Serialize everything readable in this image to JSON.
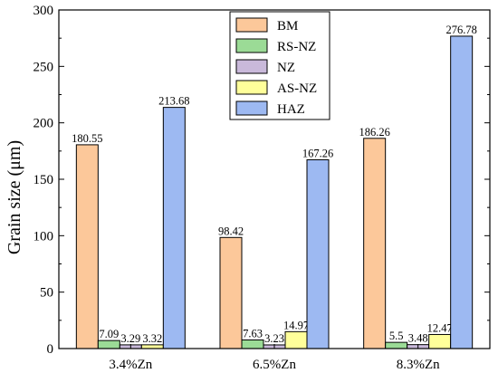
{
  "chart_data": {
    "type": "bar",
    "ylabel": "Grain size (μm)",
    "xlabel": "",
    "ylim": [
      0,
      300
    ],
    "yticks": [
      0,
      50,
      100,
      150,
      200,
      250,
      300
    ],
    "grid": false,
    "legend_position": "top-center",
    "categories": [
      "3.4%Zn",
      "6.5%Zn",
      "8.3%Zn"
    ],
    "series": [
      {
        "name": "BM",
        "color": "#FCC89A",
        "values": [
          180.55,
          98.42,
          186.26
        ],
        "labels": [
          "180.55",
          "98.42",
          "186.26"
        ]
      },
      {
        "name": "RS-NZ",
        "color": "#9BDB96",
        "values": [
          7.09,
          7.63,
          5.5
        ],
        "labels": [
          "7.09",
          "7.63",
          "5.5"
        ]
      },
      {
        "name": "NZ",
        "color": "#C9B9DA",
        "values": [
          3.29,
          3.23,
          3.48
        ],
        "labels": [
          "3.29",
          "3.23",
          "3.48"
        ]
      },
      {
        "name": "AS-NZ",
        "color": "#FFFF9A",
        "values": [
          3.32,
          14.97,
          12.47
        ],
        "labels": [
          "3.32",
          "14.97",
          "12.47"
        ]
      },
      {
        "name": "HAZ",
        "color": "#9DB9F2",
        "values": [
          213.68,
          167.26,
          276.78
        ],
        "labels": [
          "213.68",
          "167.26",
          "276.78"
        ]
      }
    ]
  }
}
